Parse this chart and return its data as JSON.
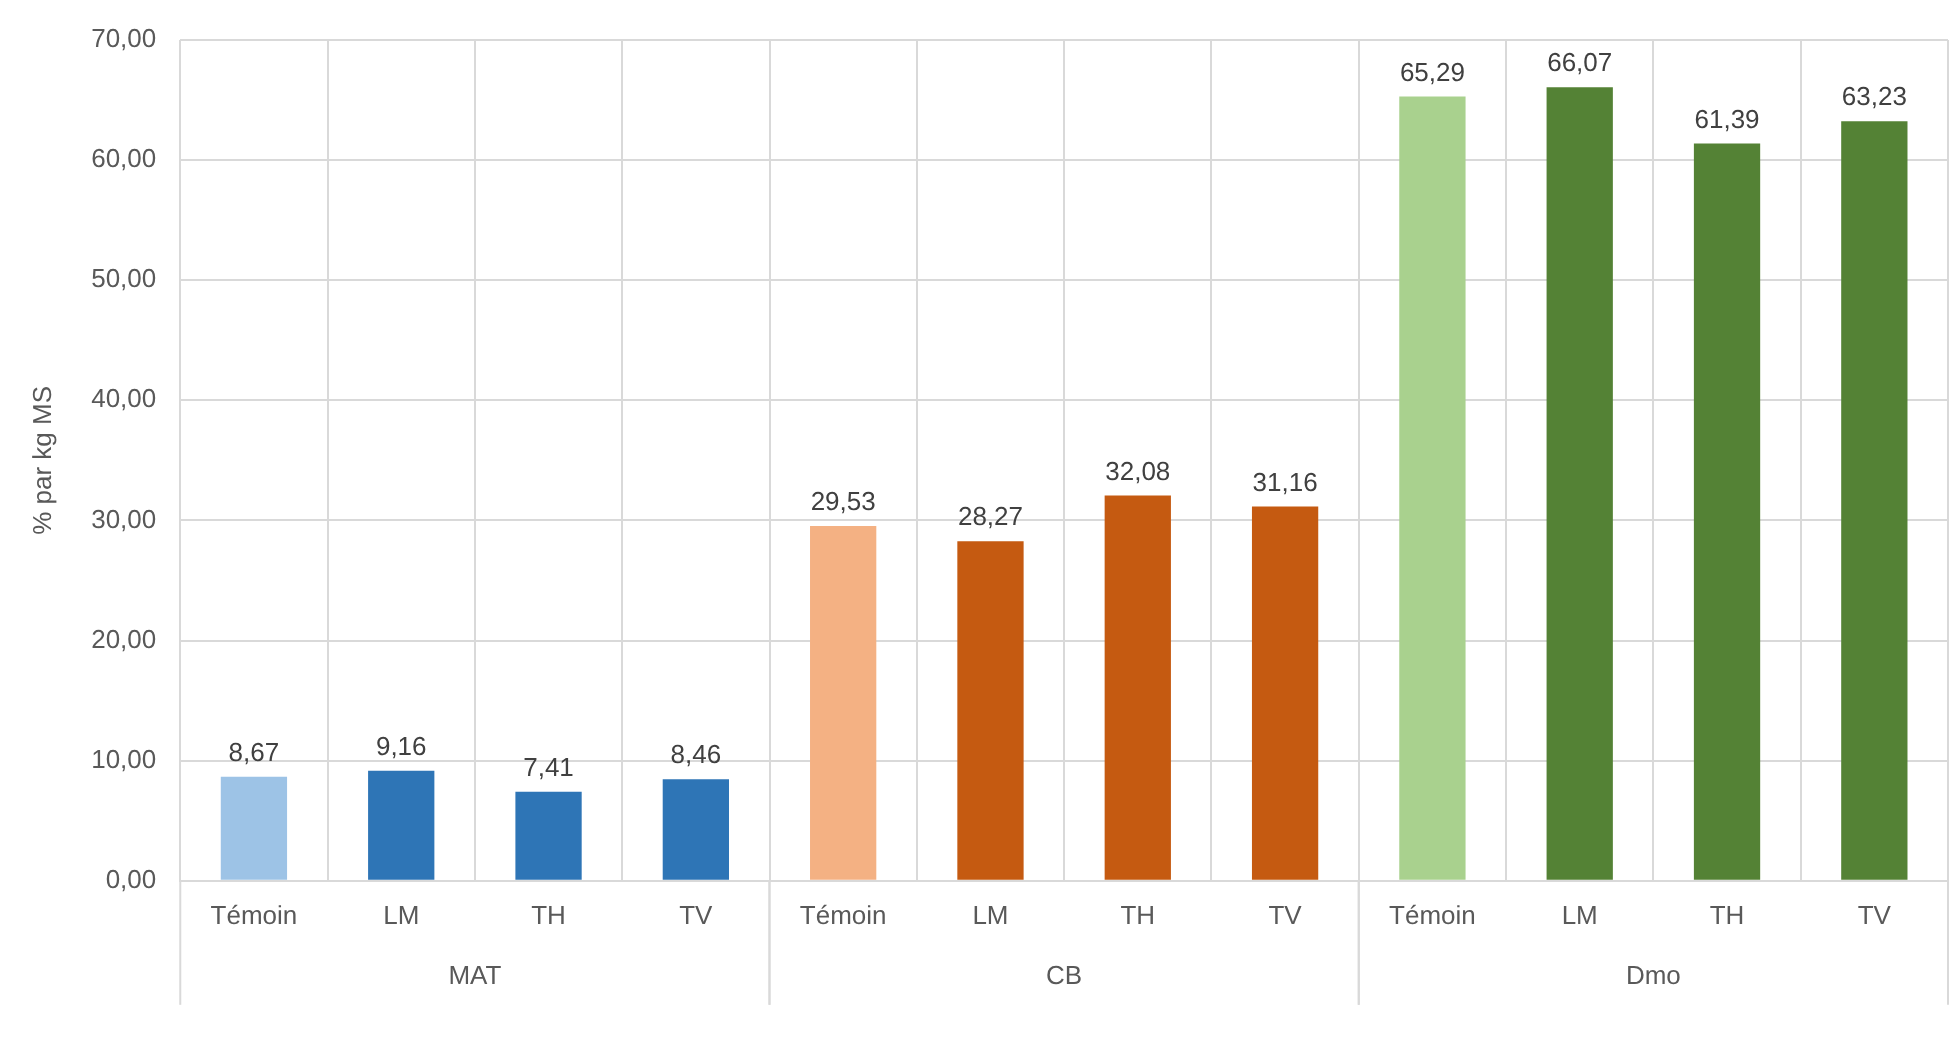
{
  "chart_data": {
    "type": "bar",
    "ylabel": "% par kg MS",
    "categories": [
      "Témoin",
      "LM",
      "TH",
      "TV",
      "Témoin",
      "LM",
      "TH",
      "TV",
      "Témoin",
      "LM",
      "TH",
      "TV"
    ],
    "values": [
      8.67,
      9.16,
      7.41,
      8.46,
      29.53,
      28.27,
      32.08,
      31.16,
      65.29,
      66.07,
      61.39,
      63.23
    ],
    "value_labels": [
      "8,67",
      "9,16",
      "7,41",
      "8,46",
      "29,53",
      "28,27",
      "32,08",
      "31,16",
      "65,29",
      "66,07",
      "61,39",
      "63,23"
    ],
    "colors": [
      "#9dc3e6",
      "#2e75b6",
      "#2e75b6",
      "#2e75b6",
      "#f4b183",
      "#c55a11",
      "#c55a11",
      "#c55a11",
      "#a9d18e",
      "#548235",
      "#548235",
      "#548235"
    ],
    "annotations": [
      "MAT",
      "CB",
      "Dmo"
    ],
    "ylim": [
      0,
      70
    ],
    "yticks": [
      {
        "value": 0,
        "label": "0,00"
      },
      {
        "value": 10,
        "label": "10,00"
      },
      {
        "value": 20,
        "label": "20,00"
      },
      {
        "value": 30,
        "label": "30,00"
      },
      {
        "value": 40,
        "label": "40,00"
      },
      {
        "value": 50,
        "label": "50,00"
      },
      {
        "value": 60,
        "label": "60,00"
      },
      {
        "value": 70,
        "label": "70,00"
      }
    ],
    "grid": true,
    "legend": false
  }
}
